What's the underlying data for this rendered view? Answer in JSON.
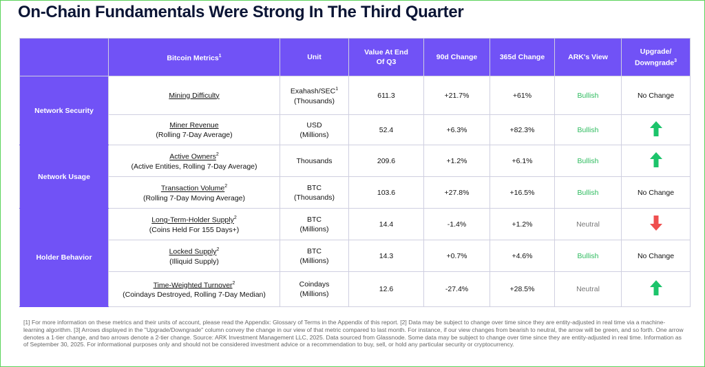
{
  "title": "On-Chain Fundamentals Were Strong In The Third Quarter",
  "table": {
    "header": [
      "Bitcoin Metrics",
      "Unit",
      "Value At End Of Q3",
      "90d Change",
      "365d Change",
      "ARK's View",
      "Upgrade/ Downgrade"
    ],
    "metrics_note": "1",
    "upgrade_note": "3",
    "groups": [
      "Network Security",
      "Network Usage",
      "Holder Behavior"
    ],
    "rows": [
      {
        "metric": "Mining Difficulty",
        "unit": [
          "Exahash/SEC",
          "(Thousands)"
        ],
        "unit_note": "1",
        "value": "611.3",
        "d90": "+21.7%",
        "d365": "+61%",
        "view": "Bullish",
        "upgrade": "No Change"
      },
      {
        "metric": "Miner Revenue",
        "detail": "(Rolling 7-Day Average)",
        "unit": [
          "USD",
          "(Millions)"
        ],
        "value": "52.4",
        "d90": "+6.3%",
        "d365": "+82.3%",
        "view": "Bullish"
      },
      {
        "metric": "Active Owners",
        "metric_note": "2",
        "detail": "(Active Entities, Rolling 7-Day Average)",
        "unit": [
          "Thousands"
        ],
        "value": "209.6",
        "d90": "+1.2%",
        "d365": "+6.1%",
        "view": "Bullish"
      },
      {
        "metric": "Transaction Volume",
        "metric_note": "2",
        "detail": "(Rolling 7-Day Moving Average)",
        "unit": [
          "BTC",
          "(Thousands)"
        ],
        "value": "103.6",
        "d90": "+27.8%",
        "d365": "+16.5%",
        "view": "Bullish",
        "upgrade": "No Change"
      },
      {
        "metric": "Long-Term-Holder Supply",
        "metric_note": "2",
        "detail": "(Coins Held For 155 Days+)",
        "unit": [
          "BTC",
          "(Millions)"
        ],
        "value": "14.4",
        "d90": "-1.4%",
        "d365": "+1.2%",
        "view": "Neutral"
      },
      {
        "metric": "Locked Supply",
        "metric_note": "2",
        "detail": "(Illiquid Supply)",
        "unit": [
          "BTC",
          "(Millions)"
        ],
        "value": "14.3",
        "d90": "+0.7%",
        "d365": "+4.6%",
        "view": "Bullish",
        "upgrade": "No Change"
      },
      {
        "metric": "Time-Weighted Turnover",
        "metric_note": "2",
        "detail": "(Coindays Destroyed, Rolling 7-Day Median)",
        "unit": [
          "Coindays",
          "(Millions)"
        ],
        "value": "12.6",
        "d90": "-27.4%",
        "d365": "+28.5%",
        "view": "Neutral"
      }
    ]
  },
  "footnote": "[1] For more information on these metrics and their units of account, please read the Appendix: Glossary of Terms in the Appendix of this report. [2] Data may be subject to change over time since they are entity-adjusted in real time via a machine-learning algorithm. [3] Arrows displayed in the \"Upgrade/Downgrade\" column convey the change in our view of that metric compared to last month. For instance, if our view changes from bearish to neutral, the arrow will be green, and so forth. One arrow denotes a 1-tier change, and two arrows denote a 2-tier change.  Source: ARK Investment Management LLC, 2025. Data sourced from Glassnode. Some data may be subject to change over time since they are entity-adjusted in real time. Information as of September 30, 2025. For informational purposes only and should not be considered investment advice or a recommendation to buy, sell, or hold any particular security or cryptocurrency."
}
